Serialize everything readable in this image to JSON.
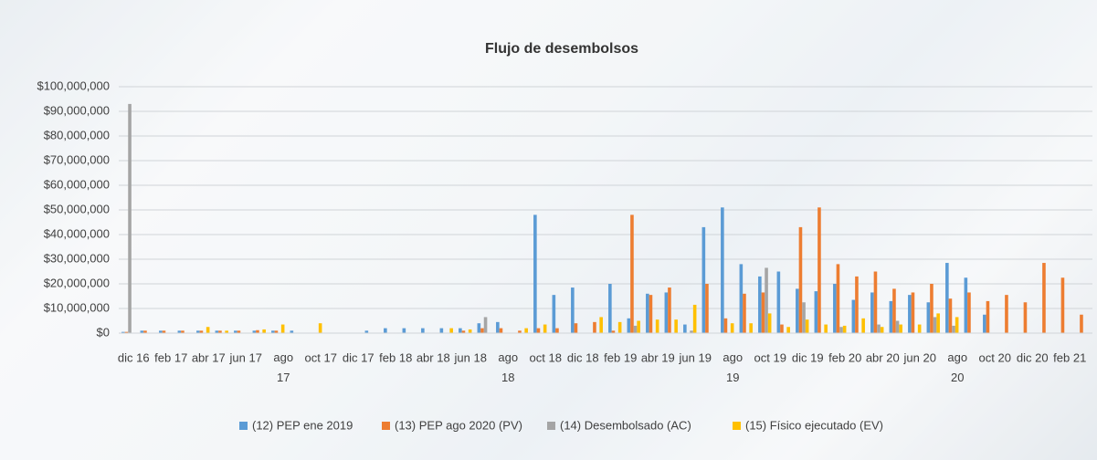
{
  "chart_data": {
    "type": "bar",
    "title": "Flujo de desembolsos",
    "categories": [
      "dic 16",
      null,
      "feb 17",
      null,
      "abr 17",
      null,
      "jun 17",
      null,
      "ago 17",
      null,
      "oct 17",
      null,
      "dic 17",
      null,
      "feb 18",
      null,
      "abr 18",
      null,
      "jun 18",
      null,
      "ago 18",
      null,
      "oct 18",
      null,
      "dic 18",
      null,
      "feb 19",
      null,
      "abr 19",
      null,
      "jun 19",
      null,
      "ago 19",
      null,
      "oct 19",
      null,
      "dic 19",
      null,
      "feb 20",
      null,
      "abr 20",
      null,
      "jun 20",
      null,
      "ago 20",
      null,
      "oct 20",
      null,
      "dic 20",
      null,
      "feb 21",
      null
    ],
    "series": [
      {
        "name": "(12) PEP ene 2019",
        "color": "#5b9bd5",
        "values": [
          0.5,
          1,
          1,
          1,
          1,
          1,
          1,
          1,
          1,
          1,
          null,
          null,
          null,
          1,
          2,
          2,
          2,
          2,
          2,
          4,
          4.5,
          null,
          48,
          15.5,
          18.5,
          null,
          20,
          6,
          16,
          16.5,
          3.5,
          43,
          51,
          28,
          23,
          25,
          18,
          17,
          20,
          13.5,
          16.5,
          13,
          15.5,
          12.5,
          28.5,
          22.5,
          7.5,
          null,
          null,
          null,
          null,
          null
        ]
      },
      {
        "name": "(13) PEP ago 2020 (PV)",
        "color": "#ed7d31",
        "values": [
          0.5,
          1,
          1,
          1,
          1,
          1,
          1,
          1.2,
          1,
          null,
          null,
          null,
          null,
          null,
          null,
          null,
          null,
          null,
          1,
          2,
          2,
          1,
          2,
          2,
          4,
          4.5,
          1,
          48,
          15.5,
          18.5,
          null,
          20,
          6,
          16,
          16.5,
          3.5,
          43,
          51,
          28,
          23,
          25,
          18,
          16.5,
          20,
          14,
          16.5,
          13,
          15.5,
          12.5,
          28.5,
          22.5,
          7.5
        ]
      },
      {
        "name": "(14) Desembolsado (AC)",
        "color": "#a5a5a5",
        "values": [
          93,
          null,
          null,
          null,
          null,
          null,
          null,
          null,
          null,
          null,
          null,
          null,
          null,
          null,
          null,
          null,
          null,
          null,
          null,
          6.5,
          null,
          null,
          null,
          null,
          null,
          null,
          null,
          3,
          null,
          null,
          1,
          null,
          null,
          null,
          26.5,
          null,
          12.5,
          null,
          2.5,
          null,
          3.5,
          5,
          null,
          6.5,
          3,
          null,
          null,
          null,
          null,
          null,
          null,
          null
        ]
      },
      {
        "name": "(15) Físico ejecutado (EV)",
        "color": "#ffc000",
        "values": [
          null,
          null,
          null,
          null,
          2.5,
          1,
          null,
          1.5,
          3.5,
          null,
          4,
          null,
          null,
          null,
          null,
          null,
          null,
          2,
          1.5,
          null,
          null,
          2,
          3.5,
          null,
          null,
          6.5,
          4.5,
          5,
          5.5,
          5.5,
          11.5,
          null,
          4,
          4,
          8,
          2.5,
          5.5,
          3.5,
          3,
          6,
          2.5,
          3.5,
          3.5,
          8,
          6.5,
          null,
          null,
          null,
          null,
          null,
          null,
          null
        ]
      }
    ],
    "ylim": [
      0,
      100
    ],
    "yticks": [
      {
        "value": 0,
        "label": "$0"
      },
      {
        "value": 10,
        "label": "$10,000,000"
      },
      {
        "value": 20,
        "label": "$20,000,000"
      },
      {
        "value": 30,
        "label": "$30,000,000"
      },
      {
        "value": 40,
        "label": "$40,000,000"
      },
      {
        "value": 50,
        "label": "$50,000,000"
      },
      {
        "value": 60,
        "label": "$60,000,000"
      },
      {
        "value": 70,
        "label": "$70,000,000"
      },
      {
        "value": 80,
        "label": "$80,000,000"
      },
      {
        "value": 90,
        "label": "$90,000,000"
      },
      {
        "value": 100,
        "label": "$100,000,000"
      }
    ],
    "grid": true,
    "legend": "bottom"
  }
}
